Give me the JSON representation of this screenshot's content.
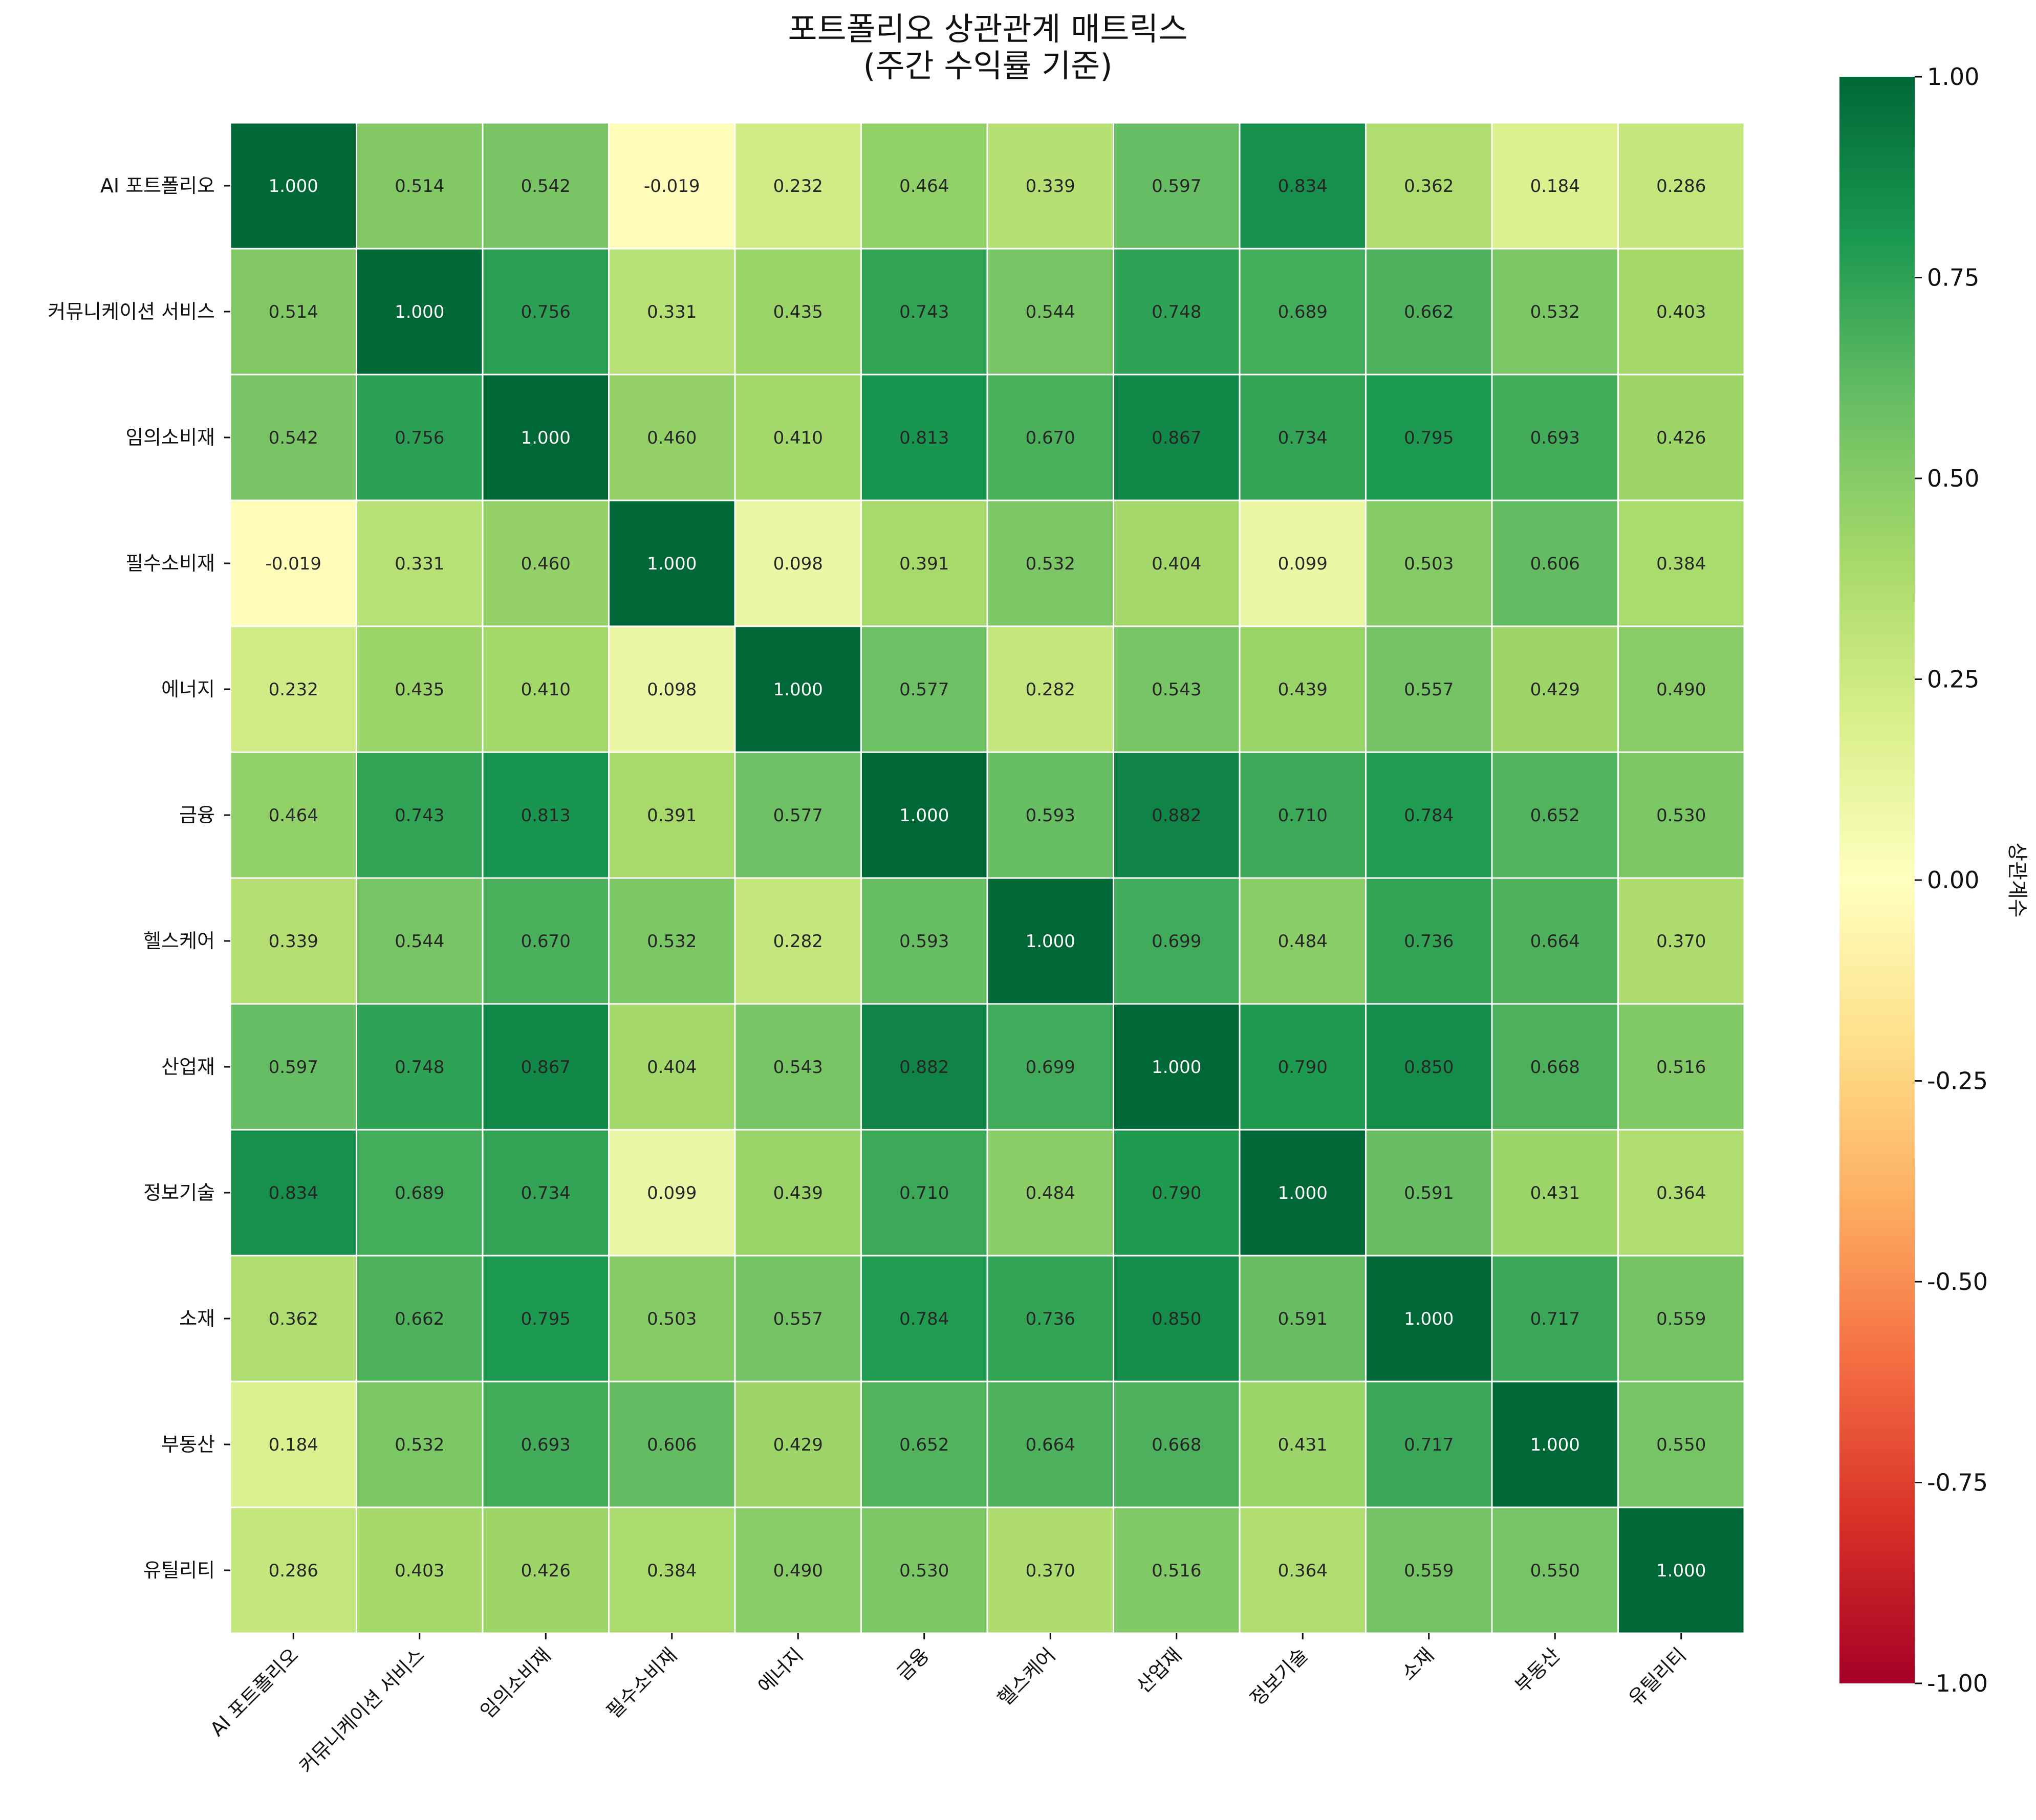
{
  "chart_data": {
    "type": "heatmap",
    "title": "포트폴리오 상관관계 매트릭스",
    "subtitle": "(주간 수익률 기준)",
    "rows": [
      "AI 포트폴리오",
      "커뮤니케이션 서비스",
      "임의소비재",
      "필수소비재",
      "에너지",
      "금융",
      "헬스케어",
      "산업재",
      "정보기술",
      "소재",
      "부동산",
      "유틸리티"
    ],
    "columns": [
      "AI 포트폴리오",
      "커뮤니케이션 서비스",
      "임의소비재",
      "필수소비재",
      "에너지",
      "금융",
      "헬스케어",
      "산업재",
      "정보기술",
      "소재",
      "부동산",
      "유틸리티"
    ],
    "values": [
      [
        1.0,
        0.514,
        0.542,
        -0.019,
        0.232,
        0.464,
        0.339,
        0.597,
        0.834,
        0.362,
        0.184,
        0.286
      ],
      [
        0.514,
        1.0,
        0.756,
        0.331,
        0.435,
        0.743,
        0.544,
        0.748,
        0.689,
        0.662,
        0.532,
        0.403
      ],
      [
        0.542,
        0.756,
        1.0,
        0.46,
        0.41,
        0.813,
        0.67,
        0.867,
        0.734,
        0.795,
        0.693,
        0.426
      ],
      [
        -0.019,
        0.331,
        0.46,
        1.0,
        0.098,
        0.391,
        0.532,
        0.404,
        0.099,
        0.503,
        0.606,
        0.384
      ],
      [
        0.232,
        0.435,
        0.41,
        0.098,
        1.0,
        0.577,
        0.282,
        0.543,
        0.439,
        0.557,
        0.429,
        0.49
      ],
      [
        0.464,
        0.743,
        0.813,
        0.391,
        0.577,
        1.0,
        0.593,
        0.882,
        0.71,
        0.784,
        0.652,
        0.53
      ],
      [
        0.339,
        0.544,
        0.67,
        0.532,
        0.282,
        0.593,
        1.0,
        0.699,
        0.484,
        0.736,
        0.664,
        0.37
      ],
      [
        0.597,
        0.748,
        0.867,
        0.404,
        0.543,
        0.882,
        0.699,
        1.0,
        0.79,
        0.85,
        0.668,
        0.516
      ],
      [
        0.834,
        0.689,
        0.734,
        0.099,
        0.439,
        0.71,
        0.484,
        0.79,
        1.0,
        0.591,
        0.431,
        0.364
      ],
      [
        0.362,
        0.662,
        0.795,
        0.503,
        0.557,
        0.784,
        0.736,
        0.85,
        0.591,
        1.0,
        0.717,
        0.559
      ],
      [
        0.184,
        0.532,
        0.693,
        0.606,
        0.429,
        0.652,
        0.664,
        0.668,
        0.431,
        0.717,
        1.0,
        0.55
      ],
      [
        0.286,
        0.403,
        0.426,
        0.384,
        0.49,
        0.53,
        0.37,
        0.516,
        0.364,
        0.559,
        0.55,
        1.0
      ]
    ],
    "value_format": "3 decimals",
    "colormap": "RdYlGn",
    "vmin": -1.0,
    "vmax": 1.0,
    "colorbar_label": "상관계수",
    "colorbar_ticks": [
      "1.00",
      "0.75",
      "0.50",
      "0.25",
      "0.00",
      "-0.25",
      "-0.50",
      "-0.75",
      "-1.00"
    ],
    "colorbar_tick_values": [
      1.0,
      0.75,
      0.5,
      0.25,
      0.0,
      -0.25,
      -0.5,
      -0.75,
      -1.0
    ],
    "cell_border_color": "#ffffff",
    "colormap_stops": [
      "#a50026",
      "#d73027",
      "#f46d43",
      "#fdae61",
      "#fee08b",
      "#ffffbf",
      "#d9ef8b",
      "#a6d96a",
      "#66bd63",
      "#1a9850",
      "#006837"
    ]
  }
}
